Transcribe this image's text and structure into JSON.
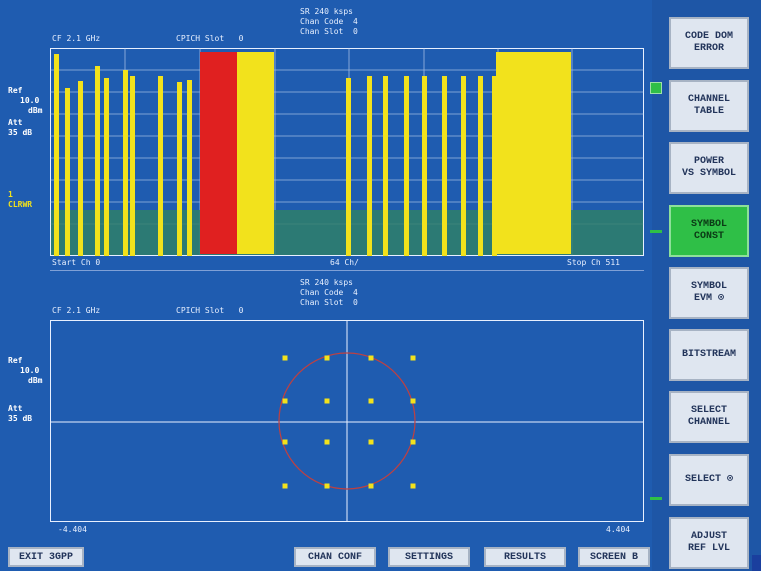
{
  "top": {
    "header": {
      "sr": "SR 240 ksps",
      "chan_code": "Chan Code  4",
      "chan_slot": "Chan Slot  0"
    },
    "cf": "CF 2.1 GHz",
    "cpich": "CPICH Slot   0",
    "ref_label": "Ref",
    "ref_value": "10.0",
    "ref_unit": "dBm",
    "att_label": "Att",
    "att_value": "35 dB",
    "trace_num": "1",
    "trace_mode": "CLRWR",
    "start": "Start Ch 0",
    "mid": "64 Ch/",
    "stop": "Stop Ch 511",
    "bar_color": "#f2e21c",
    "highlight_color": "#e02020",
    "noise_color": "#2f7f6a"
  },
  "bottom": {
    "header": {
      "sr": "SR 240 ksps",
      "chan_code": "Chan Code  4",
      "chan_slot": "Chan Slot  0"
    },
    "cf": "CF 2.1 GHz",
    "cpich": "CPICH Slot   0",
    "ref_label": "Ref",
    "ref_value": "10.0",
    "ref_unit": "dBm",
    "att_label": "Att",
    "att_value": "35 dB",
    "x_min": "-4.404",
    "x_max": "4.404",
    "point_color": "#f2e21c",
    "circle_color": "#c04040"
  },
  "softkeys": [
    {
      "line1": "CODE DOM",
      "line2": "ERROR"
    },
    {
      "line1": "CHANNEL",
      "line2": "TABLE"
    },
    {
      "line1": "POWER",
      "line2": "VS SYMBOL"
    },
    {
      "line1": "SYMBOL",
      "line2": "CONST"
    },
    {
      "line1": "SYMBOL",
      "line2": "EVM   ⊙"
    },
    {
      "line1": "BITSTREAM",
      "line2": ""
    },
    {
      "line1": "SELECT",
      "line2": "CHANNEL"
    },
    {
      "line1": "SELECT ⊙",
      "line2": ""
    },
    {
      "line1": "ADJUST",
      "line2": "REF LVL"
    }
  ],
  "hotkeys": {
    "exit": "EXIT 3GPP",
    "chan_conf": "CHAN CONF",
    "settings": "SETTINGS",
    "results": "RESULTS",
    "screen": "SCREEN B"
  }
}
